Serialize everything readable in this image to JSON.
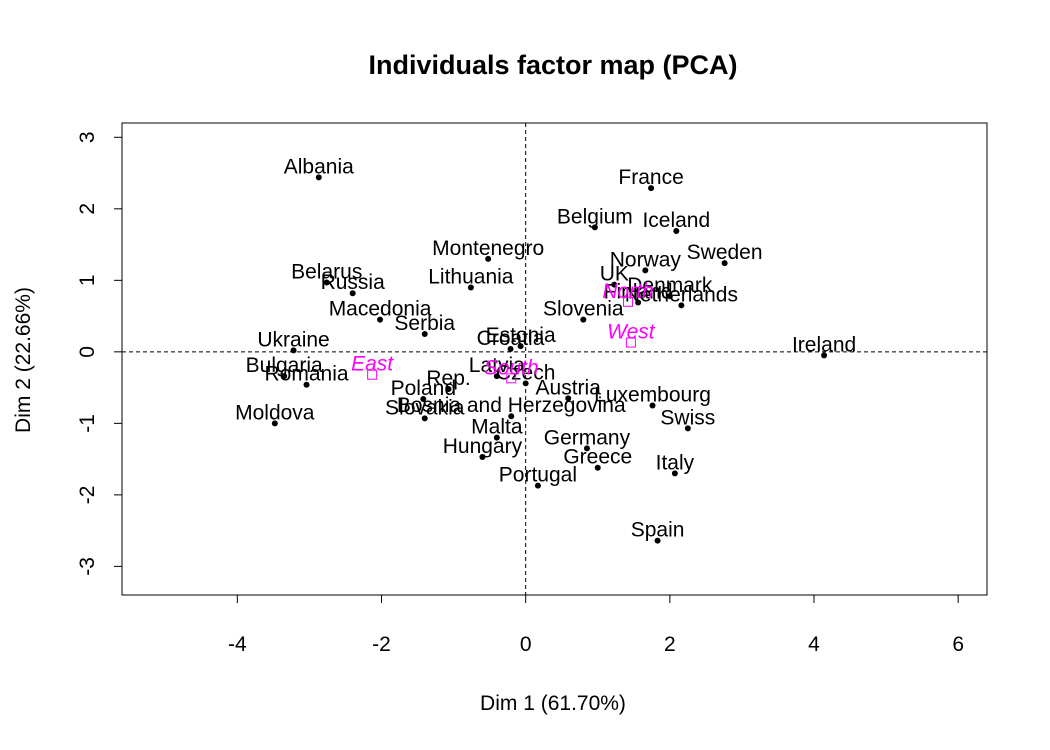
{
  "chart_data": {
    "type": "scatter",
    "title": "Individuals factor map (PCA)",
    "xlabel": "Dim 1 (61.70%)",
    "ylabel": "Dim 2 (22.66%)",
    "xlim": [
      -5.6,
      6.4
    ],
    "ylim": [
      -3.4,
      3.2
    ],
    "xticks": [
      -4,
      -2,
      0,
      2,
      4,
      6
    ],
    "yticks": [
      -3,
      -2,
      -1,
      0,
      1,
      2,
      3
    ],
    "grid": false,
    "reference_lines": {
      "x": 0,
      "y": 0,
      "style": "dashed"
    },
    "point_color": "#000000",
    "supplementary_color": "#ff00ff",
    "points": [
      {
        "label": "Albania",
        "x": -2.87,
        "y": 2.44
      },
      {
        "label": "France",
        "x": 1.74,
        "y": 2.29
      },
      {
        "label": "Belgium",
        "x": 0.96,
        "y": 1.74
      },
      {
        "label": "Iceland",
        "x": 2.09,
        "y": 1.69
      },
      {
        "label": "Montenegro",
        "x": -0.52,
        "y": 1.3
      },
      {
        "label": "Sweden",
        "x": 2.76,
        "y": 1.24
      },
      {
        "label": "Norway",
        "x": 1.66,
        "y": 1.14
      },
      {
        "label": "UK",
        "x": 1.23,
        "y": 0.94
      },
      {
        "label": "Belarus",
        "x": -2.76,
        "y": 0.97
      },
      {
        "label": "Lithuania",
        "x": -0.76,
        "y": 0.9
      },
      {
        "label": "Russia",
        "x": -2.4,
        "y": 0.82
      },
      {
        "label": "Denmark",
        "x": 2.0,
        "y": 0.78
      },
      {
        "label": "Finland",
        "x": 1.56,
        "y": 0.69
      },
      {
        "label": "Netherlands",
        "x": 2.16,
        "y": 0.65
      },
      {
        "label": "Macedonia",
        "x": -2.02,
        "y": 0.45
      },
      {
        "label": "Slovenia",
        "x": 0.8,
        "y": 0.45
      },
      {
        "label": "Serbia",
        "x": -1.4,
        "y": 0.25
      },
      {
        "label": "Croatia",
        "x": -0.21,
        "y": 0.04
      },
      {
        "label": "Estonia",
        "x": -0.07,
        "y": 0.08
      },
      {
        "label": "Ukraine",
        "x": -3.22,
        "y": 0.02
      },
      {
        "label": "Ireland",
        "x": 4.14,
        "y": -0.05
      },
      {
        "label": "Bulgaria",
        "x": -3.35,
        "y": -0.34
      },
      {
        "label": "Latvia",
        "x": -0.4,
        "y": -0.34
      },
      {
        "label": "Czech",
        "x": 0.0,
        "y": -0.44
      },
      {
        "label": "Rep.",
        "x": -1.07,
        "y": -0.52
      },
      {
        "label": "Romania",
        "x": -3.04,
        "y": -0.46
      },
      {
        "label": "Austria",
        "x": 0.59,
        "y": -0.65
      },
      {
        "label": "Poland",
        "x": -1.42,
        "y": -0.66
      },
      {
        "label": "Luxembourg",
        "x": 1.76,
        "y": -0.75
      },
      {
        "label": "Bosnia and Herzegovina",
        "x": -0.2,
        "y": -0.9
      },
      {
        "label": "Slovakia",
        "x": -1.4,
        "y": -0.93
      },
      {
        "label": "Moldova",
        "x": -3.48,
        "y": -1.0
      },
      {
        "label": "Swiss",
        "x": 2.25,
        "y": -1.07
      },
      {
        "label": "Malta",
        "x": -0.4,
        "y": -1.2
      },
      {
        "label": "Germany",
        "x": 0.85,
        "y": -1.35
      },
      {
        "label": "Hungary",
        "x": -0.6,
        "y": -1.47
      },
      {
        "label": "Greece",
        "x": 1.0,
        "y": -1.62
      },
      {
        "label": "Italy",
        "x": 2.07,
        "y": -1.7
      },
      {
        "label": "Portugal",
        "x": 0.17,
        "y": -1.87
      },
      {
        "label": "Spain",
        "x": 1.83,
        "y": -2.64
      }
    ],
    "supplementary": [
      {
        "label": "North",
        "x": 1.42,
        "y": 0.7
      },
      {
        "label": "West",
        "x": 1.46,
        "y": 0.13
      },
      {
        "label": "South",
        "x": -0.2,
        "y": -0.37
      },
      {
        "label": "East",
        "x": -2.13,
        "y": -0.32
      }
    ]
  }
}
